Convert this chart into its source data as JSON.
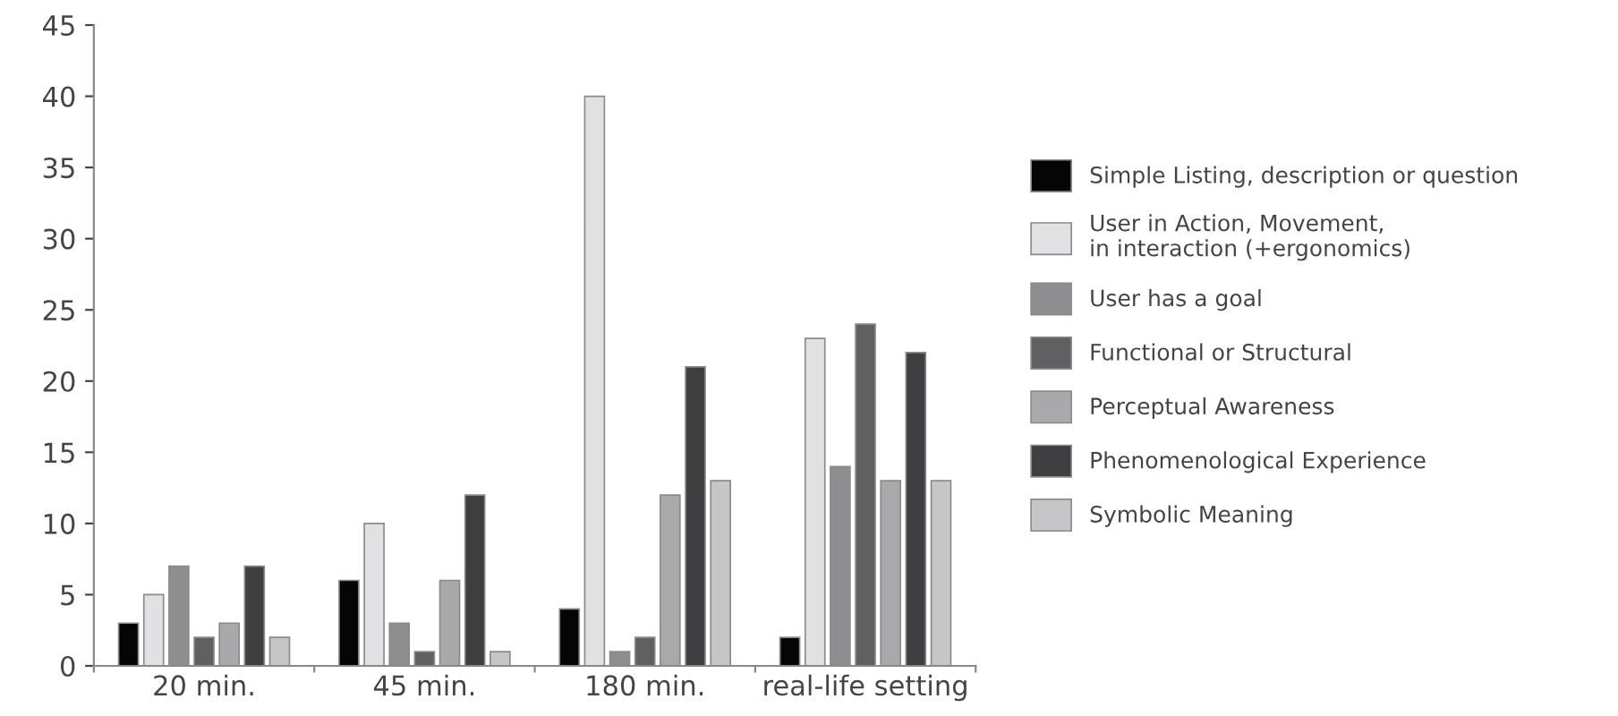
{
  "chart_data": {
    "type": "bar",
    "categories": [
      "20 min.",
      "45 min.",
      "180 min.",
      "real-life setting"
    ],
    "series": [
      {
        "name": "Simple Listing, description or question",
        "color": "#050505",
        "values": [
          3,
          6,
          4,
          2
        ]
      },
      {
        "name": "User in Action, Movement,\nin interaction (+ergonomics)",
        "color": "#e1e1e3",
        "values": [
          5,
          10,
          40,
          23
        ]
      },
      {
        "name": "User has a goal",
        "color": "#8e8e90",
        "values": [
          7,
          3,
          1,
          14
        ]
      },
      {
        "name": "Functional or Structural",
        "color": "#606062",
        "values": [
          2,
          1,
          2,
          24
        ]
      },
      {
        "name": "Perceptual Awareness",
        "color": "#a9a9ab",
        "values": [
          3,
          6,
          12,
          13
        ]
      },
      {
        "name": "Phenomenological Experience",
        "color": "#3f3f41",
        "values": [
          7,
          12,
          21,
          22
        ]
      },
      {
        "name": "Symbolic Meaning",
        "color": "#c6c6c8",
        "values": [
          2,
          1,
          13,
          13
        ]
      }
    ],
    "ylim": [
      0,
      45
    ],
    "yticks": [
      0,
      5,
      10,
      15,
      20,
      25,
      30,
      35,
      40,
      45
    ],
    "grid": false,
    "legend": "right"
  }
}
